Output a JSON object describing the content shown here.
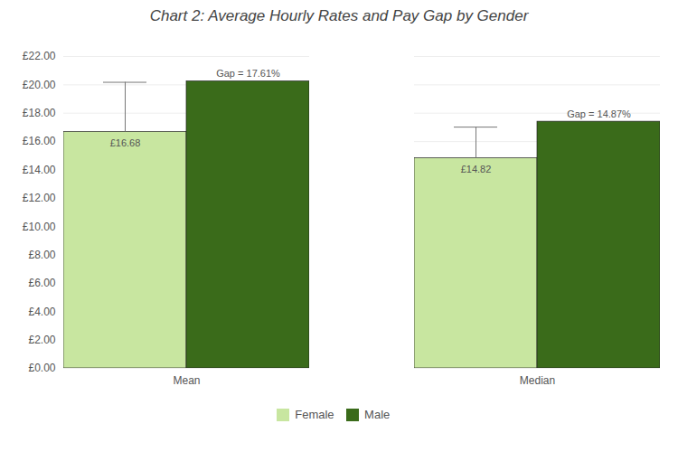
{
  "chart_data": {
    "type": "bar",
    "title": "Chart 2: Average Hourly Rates and Pay Gap by Gender",
    "categories": [
      "Mean",
      "Median"
    ],
    "series": [
      {
        "name": "Female",
        "color": "#c8e6a0",
        "values": [
          16.68,
          14.82
        ],
        "value_labels": [
          "£16.68",
          "£14.82"
        ],
        "errors_upper": [
          3.5,
          2.2
        ]
      },
      {
        "name": "Male",
        "color": "#3a6b1a",
        "values": [
          20.24,
          17.4
        ],
        "annotations": [
          "Gap = 17.61%",
          "Gap = 14.87%"
        ]
      }
    ],
    "ylim": [
      0,
      22
    ],
    "yticks": [
      {
        "value": 0,
        "label": "£0.00"
      },
      {
        "value": 2,
        "label": "£2.00"
      },
      {
        "value": 4,
        "label": "£4.00"
      },
      {
        "value": 6,
        "label": "£6.00"
      },
      {
        "value": 8,
        "label": "£8.00"
      },
      {
        "value": 10,
        "label": "£10.00"
      },
      {
        "value": 12,
        "label": "£12.00"
      },
      {
        "value": 14,
        "label": "£14.00"
      },
      {
        "value": 16,
        "label": "£16.00"
      },
      {
        "value": 18,
        "label": "£18.00"
      },
      {
        "value": 20,
        "label": "£20.00"
      },
      {
        "value": 22,
        "label": "£22.00"
      }
    ],
    "grid": true,
    "legend": "bottom"
  }
}
